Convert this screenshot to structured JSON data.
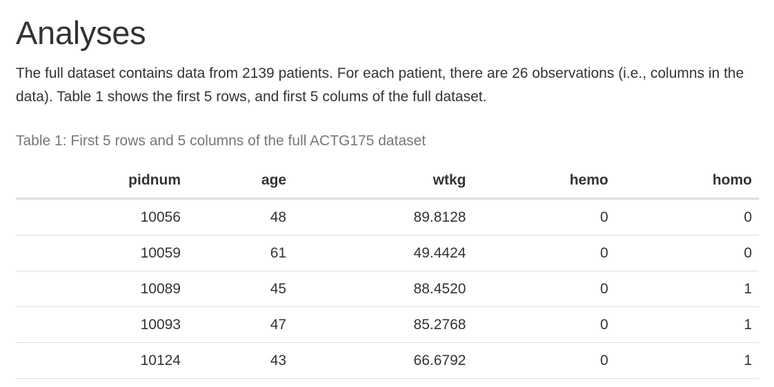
{
  "heading": "Analyses",
  "intro": "The full dataset contains data from 2139 patients. For each patient, there are 26 observations (i.e., columns in the data). Table 1 shows the first 5 rows, and first 5 colums of the full dataset.",
  "table": {
    "caption": "Table 1: First 5 rows and 5 columns of the full ACTG175 dataset",
    "columns": [
      "pidnum",
      "age",
      "wtkg",
      "hemo",
      "homo"
    ],
    "rows": [
      [
        "10056",
        "48",
        "89.8128",
        "0",
        "0"
      ],
      [
        "10059",
        "61",
        "49.4424",
        "0",
        "0"
      ],
      [
        "10089",
        "45",
        "88.4520",
        "0",
        "1"
      ],
      [
        "10093",
        "47",
        "85.2768",
        "0",
        "1"
      ],
      [
        "10124",
        "43",
        "66.6792",
        "0",
        "1"
      ]
    ]
  }
}
